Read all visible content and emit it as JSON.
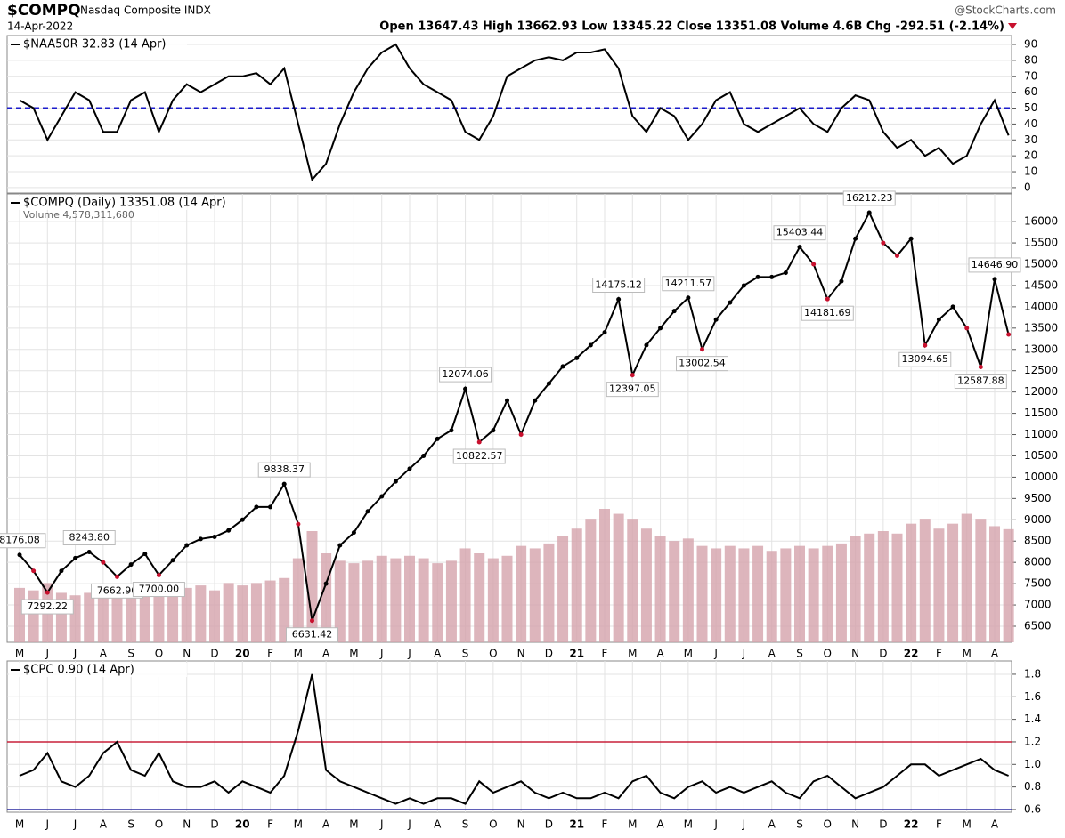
{
  "header": {
    "symbol": "$COMPQ",
    "name": "Nasdaq Composite INDX",
    "date": "14-Apr-2022",
    "source": "@StockCharts.com",
    "quote": "Open 13647.43 High 13662.93 Low 13345.22 Close 13351.08 Volume 4.6B Chg -292.51 (-2.14%)"
  },
  "chart_data": [
    {
      "type": "line",
      "title": "$NAA50R 32.83 (14 Apr)",
      "color": "#000000",
      "values": [
        55,
        50,
        30,
        45,
        60,
        55,
        35,
        35,
        55,
        60,
        35,
        55,
        65,
        60,
        65,
        70,
        70,
        72,
        65,
        75,
        40,
        5,
        15,
        40,
        60,
        75,
        85,
        90,
        75,
        65,
        60,
        55,
        35,
        30,
        45,
        70,
        75,
        80,
        82,
        80,
        85,
        85,
        87,
        75,
        45,
        35,
        50,
        45,
        30,
        40,
        55,
        60,
        40,
        35,
        40,
        45,
        50,
        40,
        35,
        50,
        58,
        55,
        35,
        25,
        30,
        20,
        25,
        15,
        20,
        40,
        55,
        32.83
      ],
      "ylim": [
        -3.4,
        95.6
      ],
      "yticks": [
        0,
        10,
        20,
        30,
        40,
        50,
        60,
        70,
        80,
        90
      ],
      "grid": true,
      "reference_lines": [
        {
          "value": 50,
          "color": "#1c1ccc",
          "dashed": true
        }
      ]
    },
    {
      "type": "line",
      "title": "$COMPQ (Daily) 13351.08 (14 Apr)",
      "color": "#000000",
      "down_color": "#c8102e",
      "categories": [
        "M",
        null,
        "J",
        null,
        "J",
        null,
        "A",
        null,
        "S",
        null,
        "O",
        null,
        "N",
        null,
        "D",
        null,
        "20",
        null,
        "F",
        null,
        "M",
        null,
        "A",
        null,
        "M",
        null,
        "J",
        null,
        "J",
        null,
        "A",
        null,
        "S",
        null,
        "O",
        null,
        "N",
        null,
        "D",
        null,
        "21",
        null,
        "F",
        null,
        "M",
        null,
        "A",
        null,
        "M",
        null,
        "J",
        null,
        "J",
        null,
        "A",
        null,
        "S",
        null,
        "O",
        null,
        "N",
        null,
        "D",
        null,
        "22",
        null,
        "F",
        null,
        "M",
        null,
        "A",
        null
      ],
      "values": [
        8176.08,
        7800,
        7292.22,
        7800,
        8100,
        8243.8,
        8000,
        7662.9,
        7950,
        8200,
        7700,
        8050,
        8400,
        8550,
        8600,
        8750,
        9000,
        9300,
        9300,
        9838.37,
        8900,
        6631.42,
        7500,
        8400,
        8700,
        9200,
        9550,
        9900,
        10200,
        10500,
        10900,
        11100,
        12074.06,
        10822.57,
        11100,
        11800,
        11000,
        11800,
        12200,
        12600,
        12800,
        13100,
        13400,
        14175.12,
        12397.05,
        13100,
        13500,
        13900,
        14211.57,
        13002.54,
        13700,
        14100,
        14500,
        14700,
        14700,
        14800,
        15403.44,
        15000,
        14181.69,
        14600,
        15600,
        16212.23,
        15500,
        15200,
        15600,
        13094.65,
        13700,
        14000,
        13500,
        12587.88,
        14646.9,
        13351.08
      ],
      "ylim": [
        6124,
        16650
      ],
      "yticks": [
        6500,
        7000,
        7500,
        8000,
        8500,
        9000,
        9500,
        10000,
        10500,
        11000,
        11500,
        12000,
        12500,
        13000,
        13500,
        14000,
        14500,
        15000,
        15500,
        16000
      ],
      "grid": true,
      "volume": {
        "title": "Volume 4,578,311,680",
        "color": "#d4a3ab",
        "values": [
          2200000000,
          2100000000,
          2400000000,
          2000000000,
          1900000000,
          2000000000,
          2100000000,
          2200000000,
          2000000000,
          2100000000,
          2200000000,
          2100000000,
          2200000000,
          2300000000,
          2100000000,
          2400000000,
          2300000000,
          2400000000,
          2500000000,
          2600000000,
          3400000000,
          4500000000,
          3600000000,
          3300000000,
          3200000000,
          3300000000,
          3500000000,
          3400000000,
          3500000000,
          3400000000,
          3200000000,
          3300000000,
          3800000000,
          3600000000,
          3400000000,
          3500000000,
          3900000000,
          3800000000,
          4000000000,
          4300000000,
          4600000000,
          5000000000,
          5400000000,
          5200000000,
          5000000000,
          4600000000,
          4300000000,
          4100000000,
          4200000000,
          3900000000,
          3800000000,
          3900000000,
          3800000000,
          3900000000,
          3700000000,
          3800000000,
          3900000000,
          3800000000,
          3900000000,
          4000000000,
          4300000000,
          4400000000,
          4500000000,
          4400000000,
          4800000000,
          5000000000,
          4600000000,
          4800000000,
          5200000000,
          5000000000,
          4700000000,
          4578311680
        ]
      },
      "annotations": {
        "values": [
          8176.08,
          null,
          7292.22,
          null,
          null,
          8243.8,
          null,
          7662.9,
          null,
          null,
          7700,
          null,
          null,
          null,
          null,
          null,
          null,
          null,
          null,
          9838.37,
          null,
          6631.42,
          null,
          null,
          null,
          null,
          null,
          null,
          null,
          null,
          null,
          null,
          12074.06,
          10822.57,
          null,
          null,
          null,
          null,
          null,
          null,
          null,
          null,
          null,
          14175.12,
          12397.05,
          null,
          null,
          null,
          14211.57,
          13002.54,
          null,
          null,
          null,
          null,
          null,
          null,
          15403.44,
          null,
          14181.69,
          null,
          null,
          16212.23,
          null,
          null,
          null,
          13094.65,
          null,
          null,
          null,
          12587.88,
          14646.9,
          null
        ],
        "value_labels": [
          "8176.08",
          null,
          "7292.22",
          null,
          null,
          "8243.80",
          null,
          "7662.90",
          null,
          null,
          "7700.00",
          null,
          null,
          null,
          null,
          null,
          null,
          null,
          null,
          "9838.37",
          null,
          "6631.42",
          null,
          null,
          null,
          null,
          null,
          null,
          null,
          null,
          null,
          null,
          "12074.06",
          "10822.57",
          null,
          null,
          null,
          null,
          null,
          null,
          null,
          null,
          null,
          "14175.12",
          "12397.05",
          null,
          null,
          null,
          "14211.57",
          "13002.54",
          null,
          null,
          null,
          null,
          null,
          null,
          "15403.44",
          null,
          "14181.69",
          null,
          null,
          "16212.23",
          null,
          null,
          null,
          "13094.65",
          null,
          null,
          null,
          "12587.88",
          "14646.90",
          null
        ]
      }
    },
    {
      "type": "line",
      "title": "$CPC 0.90 (14 Apr)",
      "color": "#000000",
      "categories": [
        "M",
        null,
        "J",
        null,
        "J",
        null,
        "A",
        null,
        "S",
        null,
        "O",
        null,
        "N",
        null,
        "D",
        null,
        "20",
        null,
        "F",
        null,
        "M",
        null,
        "A",
        null,
        "M",
        null,
        "J",
        null,
        "J",
        null,
        "A",
        null,
        "S",
        null,
        "O",
        null,
        "N",
        null,
        "D",
        null,
        "21",
        null,
        "F",
        null,
        "M",
        null,
        "A",
        null,
        "M",
        null,
        "J",
        null,
        "J",
        null,
        "A",
        null,
        "S",
        null,
        "O",
        null,
        "N",
        null,
        "D",
        null,
        "22",
        null,
        "F",
        null,
        "M",
        null,
        "A",
        null
      ],
      "values": [
        0.9,
        0.95,
        1.1,
        0.85,
        0.8,
        0.9,
        1.1,
        1.2,
        0.95,
        0.9,
        1.1,
        0.85,
        0.8,
        0.8,
        0.85,
        0.75,
        0.85,
        0.8,
        0.75,
        0.9,
        1.3,
        1.8,
        0.95,
        0.85,
        0.8,
        0.75,
        0.7,
        0.65,
        0.7,
        0.65,
        0.7,
        0.7,
        0.65,
        0.85,
        0.75,
        0.8,
        0.85,
        0.75,
        0.7,
        0.75,
        0.7,
        0.7,
        0.75,
        0.7,
        0.85,
        0.9,
        0.75,
        0.7,
        0.8,
        0.85,
        0.75,
        0.8,
        0.75,
        0.8,
        0.85,
        0.75,
        0.7,
        0.85,
        0.9,
        0.8,
        0.7,
        0.75,
        0.8,
        0.9,
        1.0,
        1.0,
        0.9,
        0.95,
        1.0,
        1.05,
        0.95,
        0.9
      ],
      "ylim": [
        0.576,
        1.918
      ],
      "yticks": [
        0.6,
        0.8,
        {
          "value": 1,
          "label": "1.0"
        },
        1.2,
        1.4,
        1.6,
        1.8
      ],
      "grid": true,
      "reference_lines": [
        {
          "value": 1.2,
          "color": "#c8203a",
          "dashed": false
        },
        {
          "value": 0.6,
          "color": "#2a2aa0",
          "dashed": false
        }
      ]
    }
  ]
}
